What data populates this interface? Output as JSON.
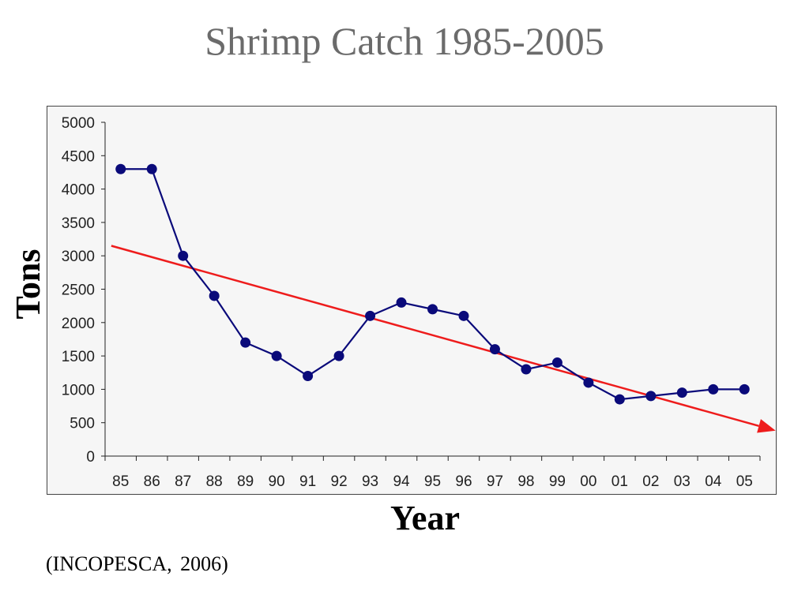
{
  "title": "Shrimp Catch 1985-2005",
  "source": "(INCOPESCA,  2006)",
  "colors": {
    "series": "#0a0a7a",
    "trend": "#ee1c1c",
    "plot_background": "#f6f6f6",
    "title": "#6b6b6b"
  },
  "chart_data": {
    "type": "line",
    "xlabel": "Year",
    "ylabel": "Tons",
    "categories": [
      "85",
      "86",
      "87",
      "88",
      "89",
      "90",
      "91",
      "92",
      "93",
      "94",
      "95",
      "96",
      "97",
      "98",
      "99",
      "00",
      "01",
      "02",
      "03",
      "04",
      "05"
    ],
    "series": [
      {
        "values": [
          4300,
          4300,
          3000,
          2400,
          1700,
          1500,
          1200,
          1500,
          2100,
          2300,
          2200,
          2100,
          1600,
          1300,
          1400,
          1100,
          850,
          900,
          950,
          1000,
          1000
        ]
      }
    ],
    "trendline": {
      "type": "linear",
      "arrow": true,
      "start": {
        "x": "85",
        "y": 3150
      },
      "end": {
        "x": "05",
        "y": 500
      }
    },
    "ylim": [
      0,
      5000
    ],
    "yticks": [
      0,
      500,
      1000,
      1500,
      2000,
      2500,
      3000,
      3500,
      4000,
      4500,
      5000
    ],
    "grid": false,
    "legend": "none",
    "markers": "circle"
  }
}
